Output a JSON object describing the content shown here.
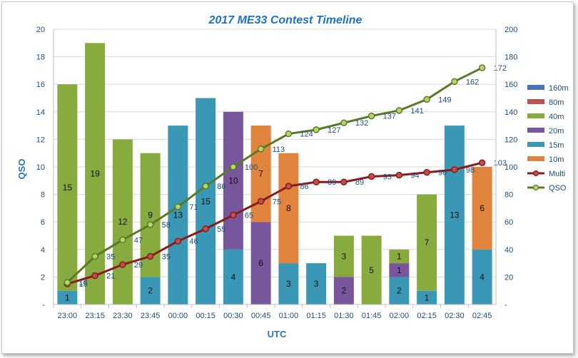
{
  "chart_data": {
    "type": "bar",
    "stacked": true,
    "title": "2017 ME33 Contest Timeline",
    "xlabel": "UTC",
    "ylabel": "QSO",
    "ylim": [
      0,
      20
    ],
    "y2lim": [
      0,
      200
    ],
    "yticks": [
      "-",
      "2",
      "4",
      "6",
      "8",
      "10",
      "12",
      "14",
      "16",
      "18",
      "20"
    ],
    "y2ticks": [
      "-",
      "20",
      "40",
      "60",
      "80",
      "100",
      "120",
      "140",
      "160",
      "180",
      "200"
    ],
    "categories": [
      "23:00",
      "23:15",
      "23:30",
      "23:45",
      "00:00",
      "00:15",
      "00:30",
      "00:45",
      "01:00",
      "01:15",
      "01:30",
      "01:45",
      "02:00",
      "02:15",
      "02:30",
      "02:45"
    ],
    "grid": "horizontal",
    "legend_position": "right",
    "series": [
      {
        "name": "160m",
        "color": "#4a73b5",
        "values": [
          0,
          0,
          0,
          0,
          0,
          0,
          0,
          0,
          0,
          0,
          0,
          0,
          0,
          0,
          0,
          0
        ]
      },
      {
        "name": "80m",
        "color": "#c0504d",
        "values": [
          0,
          0,
          0,
          0,
          0,
          0,
          0,
          0,
          0,
          0,
          0,
          0,
          0,
          0,
          0,
          0
        ]
      },
      {
        "name": "15m",
        "color": "#3a97b5",
        "values": [
          1,
          0,
          0,
          2,
          13,
          15,
          4,
          0,
          3,
          3,
          0,
          0,
          2,
          1,
          13,
          4
        ]
      },
      {
        "name": "20m",
        "color": "#77569b",
        "values": [
          0,
          0,
          0,
          0,
          0,
          0,
          10,
          6,
          0,
          0,
          2,
          0,
          1,
          0,
          0,
          0
        ]
      },
      {
        "name": "10m",
        "color": "#e0833d",
        "values": [
          0,
          0,
          0,
          0,
          0,
          0,
          0,
          7,
          8,
          0,
          0,
          0,
          0,
          0,
          0,
          6
        ]
      },
      {
        "name": "40m",
        "color": "#88ab3f",
        "values": [
          15,
          19,
          12,
          9,
          0,
          0,
          0,
          0,
          0,
          0,
          3,
          5,
          1,
          7,
          0,
          0
        ]
      }
    ],
    "bar_labels": [
      {
        "series": "15m",
        "values": [
          "1",
          "",
          "",
          "2",
          "13",
          "15",
          "4",
          "",
          "3",
          "3",
          "",
          "",
          "2",
          "1",
          "13",
          "4"
        ]
      },
      {
        "series": "20m",
        "values": [
          "",
          "",
          "",
          "",
          "",
          "",
          "10",
          "6",
          "",
          "",
          "2",
          "",
          "1",
          "",
          "",
          ""
        ]
      },
      {
        "series": "10m",
        "values": [
          "",
          "",
          "",
          "",
          "",
          "",
          "",
          "7",
          "8",
          "",
          "",
          "",
          "",
          "",
          "",
          "6"
        ]
      },
      {
        "series": "40m",
        "values": [
          "15",
          "19",
          "12",
          "9",
          "",
          "",
          "",
          "",
          "",
          "",
          "3",
          "5",
          "1",
          "7",
          "",
          ""
        ]
      }
    ],
    "lines": [
      {
        "name": "Multi",
        "axis": "y2",
        "color": "#8b1a1a",
        "marker_fill": "#c0504d",
        "values": [
          15,
          21,
          29,
          35,
          46,
          55,
          65,
          75,
          86,
          89,
          89,
          93,
          94,
          96,
          98,
          103
        ]
      },
      {
        "name": "QSO",
        "axis": "y2",
        "color": "#5a7a2a",
        "marker_fill": "#b5d46a",
        "values": [
          16,
          35,
          47,
          58,
          71,
          86,
          100,
          113,
          124,
          127,
          132,
          137,
          141,
          149,
          162,
          172
        ]
      }
    ],
    "legend": [
      "160m",
      "80m",
      "40m",
      "20m",
      "15m",
      "10m",
      "Multi",
      "QSO"
    ]
  }
}
